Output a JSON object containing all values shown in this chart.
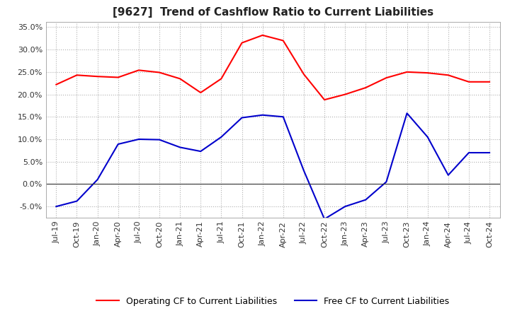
{
  "title": "[9627]  Trend of Cashflow Ratio to Current Liabilities",
  "x_labels": [
    "Jul-19",
    "Oct-19",
    "Jan-20",
    "Apr-20",
    "Jul-20",
    "Oct-20",
    "Jan-21",
    "Apr-21",
    "Jul-21",
    "Oct-21",
    "Jan-22",
    "Apr-22",
    "Jul-22",
    "Oct-22",
    "Jan-23",
    "Apr-23",
    "Jul-23",
    "Oct-23",
    "Jan-24",
    "Apr-24",
    "Jul-24",
    "Oct-24"
  ],
  "operating_cf": [
    0.222,
    0.243,
    0.24,
    0.238,
    0.254,
    0.249,
    0.235,
    0.204,
    0.235,
    0.315,
    0.332,
    0.32,
    0.245,
    0.188,
    0.2,
    0.215,
    0.237,
    0.25,
    0.248,
    0.243,
    0.228,
    0.228
  ],
  "free_cf": [
    -0.05,
    -0.038,
    0.01,
    0.089,
    0.1,
    0.099,
    0.082,
    0.073,
    0.105,
    0.148,
    0.154,
    0.15,
    0.03,
    -0.078,
    -0.05,
    -0.035,
    0.005,
    0.158,
    0.105,
    0.02,
    0.07,
    0.07
  ],
  "operating_color": "#ff0000",
  "free_color": "#0000cc",
  "ylim": [
    -0.075,
    0.362
  ],
  "yticks": [
    -0.05,
    0.0,
    0.05,
    0.1,
    0.15,
    0.2,
    0.25,
    0.3,
    0.35
  ],
  "legend_operating": "Operating CF to Current Liabilities",
  "legend_free": "Free CF to Current Liabilities",
  "background_color": "#ffffff",
  "plot_bg_color": "#ffffff",
  "grid_color": "#b0b0b0",
  "title_fontsize": 11,
  "label_fontsize": 8,
  "legend_fontsize": 9
}
